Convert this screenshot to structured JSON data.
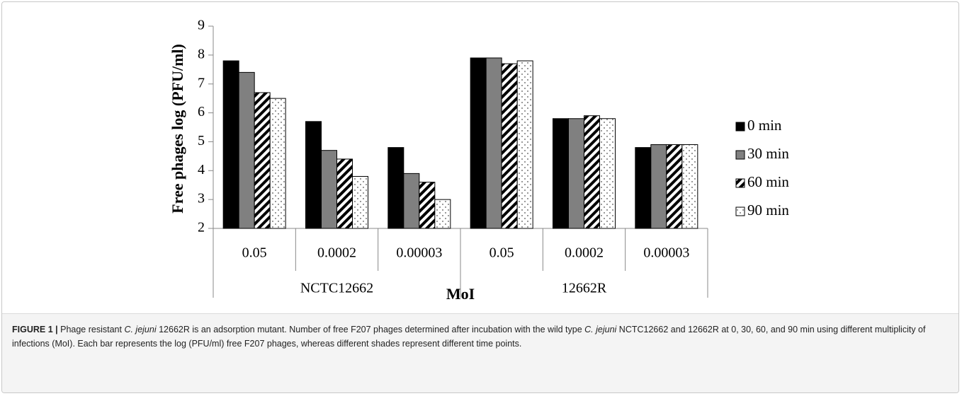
{
  "chart_data": {
    "type": "bar",
    "y_label": "Free phages log (PFU/ml)",
    "x_label": "MoI",
    "groups": [
      {
        "name": "NCTC12662",
        "categories": [
          "0.05",
          "0.0002",
          "0.00003"
        ]
      },
      {
        "name": "12662R",
        "categories": [
          "0.05",
          "0.0002",
          "0.00003"
        ]
      }
    ],
    "series": [
      {
        "name": "0 min",
        "color": "#000000",
        "pattern": "solid",
        "values": [
          7.8,
          5.7,
          4.8,
          7.9,
          5.8,
          4.8
        ]
      },
      {
        "name": "30 min",
        "color": "#808080",
        "pattern": "solid",
        "values": [
          7.4,
          4.7,
          3.9,
          7.9,
          5.8,
          4.9
        ]
      },
      {
        "name": "60 min",
        "color": "#000000",
        "pattern": "diagonal",
        "values": [
          6.7,
          4.4,
          3.6,
          7.7,
          5.9,
          4.9
        ]
      },
      {
        "name": "90 min",
        "color": "#000000",
        "pattern": "dots",
        "values": [
          6.5,
          3.8,
          3.0,
          7.8,
          5.8,
          4.9
        ]
      }
    ],
    "ylim": [
      2,
      9
    ],
    "yticks": [
      2,
      3,
      4,
      5,
      6,
      7,
      8,
      9
    ],
    "grid": false,
    "legend": "right"
  },
  "caption": {
    "label": "FIGURE 1 |",
    "parts": [
      {
        "text": "Phage resistant "
      },
      {
        "text": "C. jejuni",
        "italic": true
      },
      {
        "text": " 12662R is an adsorption mutant. Number of free F207 phages determined after incubation with the wild type "
      },
      {
        "text": "C. jejuni",
        "italic": true
      },
      {
        "text": " NCTC12662 and 12662R at 0, 30, 60, and 90 min using different multiplicity of infections (MoI). Each bar represents the log (PFU/ml) free F207 phages, whereas different shades represent different time points."
      }
    ]
  }
}
